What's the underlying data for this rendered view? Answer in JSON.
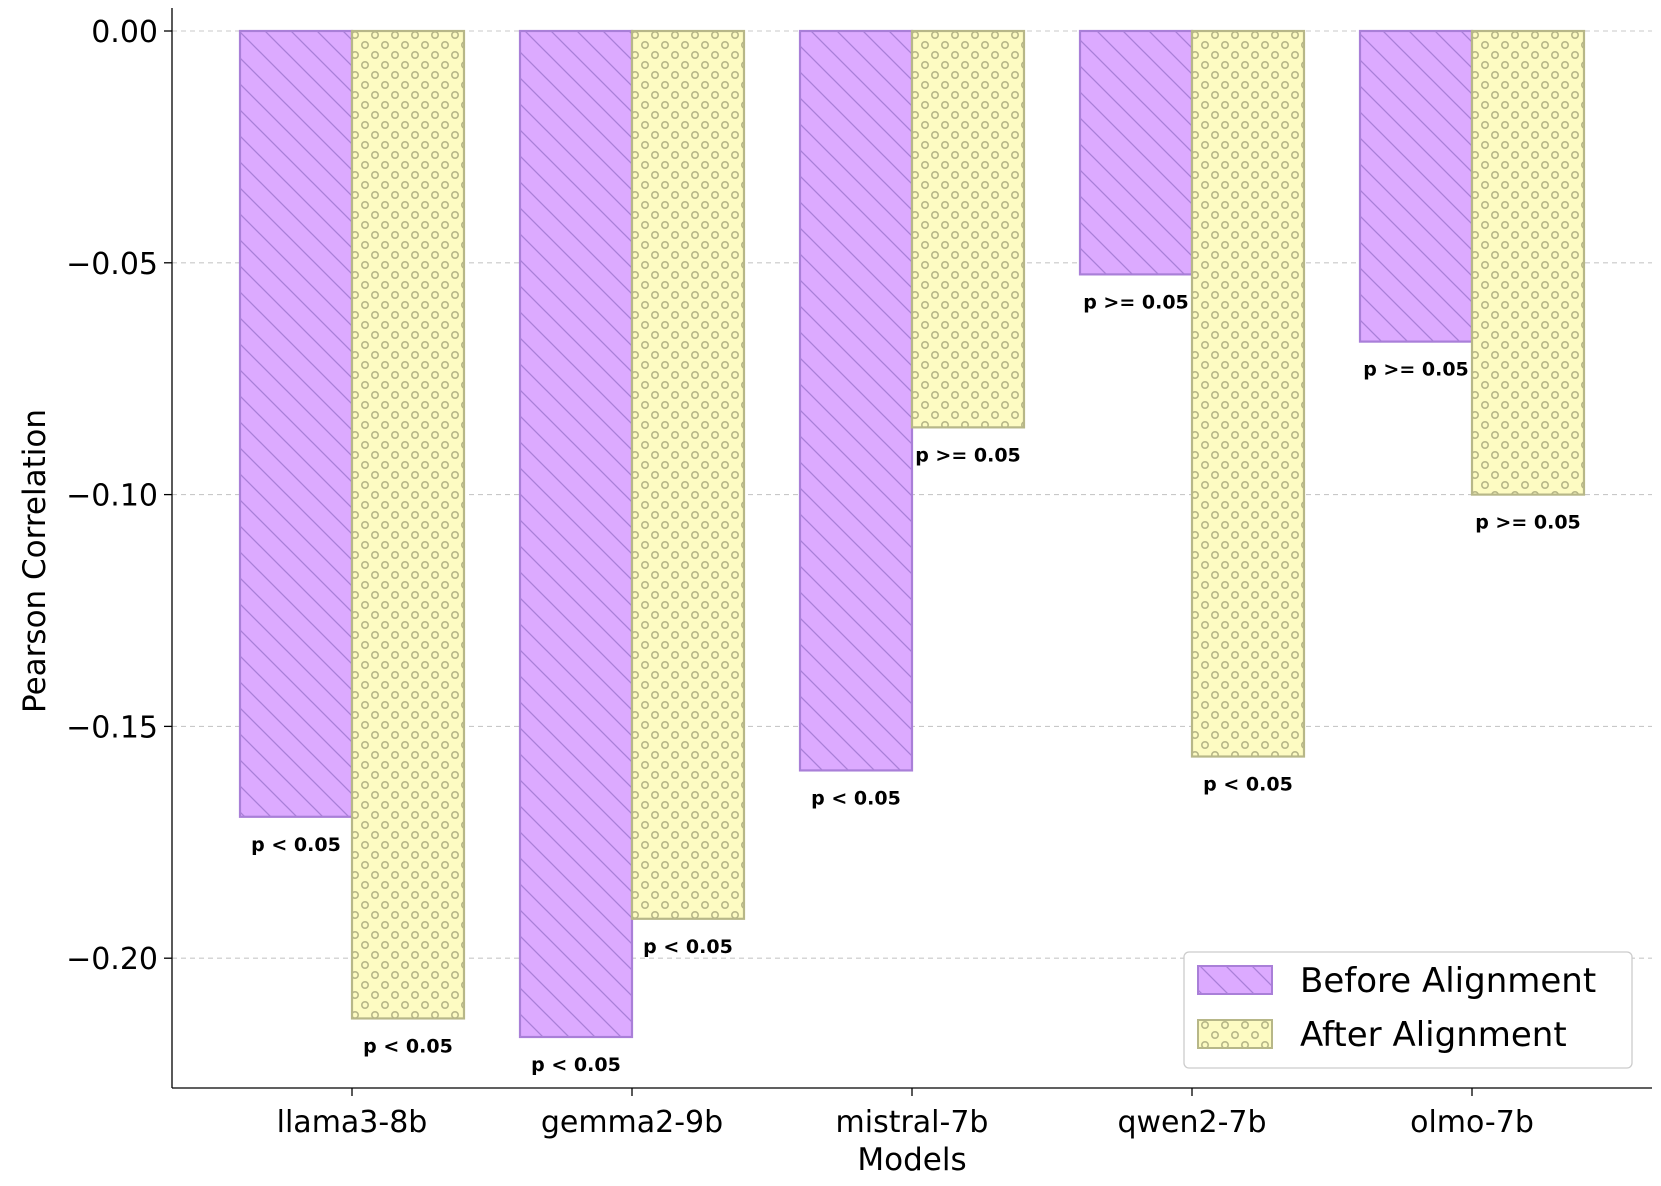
{
  "chart_data": {
    "type": "bar",
    "title": "",
    "xlabel": "Models",
    "ylabel": "Pearson Correlation",
    "ylim": [
      -0.228,
      0.0
    ],
    "yticks": [
      0.0,
      -0.05,
      -0.1,
      -0.15,
      -0.2
    ],
    "ytick_labels": [
      "0.00",
      "−0.05",
      "−0.10",
      "−0.15",
      "−0.20"
    ],
    "grid": "horizontal dashed",
    "categories": [
      "llama3-8b",
      "gemma2-9b",
      "mistral-7b",
      "qwen2-7b",
      "olmo-7b"
    ],
    "series": [
      {
        "name": "Before Alignment",
        "values": [
          -0.1695,
          -0.217,
          -0.1595,
          -0.0525,
          -0.067
        ],
        "p_labels": [
          "p < 0.05",
          "p < 0.05",
          "p < 0.05",
          "p >= 0.05",
          "p >= 0.05"
        ],
        "fill": "#dcaaff",
        "edge": "#a97fd8",
        "hatch": "diagonal"
      },
      {
        "name": "After Alignment",
        "values": [
          -0.213,
          -0.1915,
          -0.0855,
          -0.1565,
          -0.1
        ],
        "p_labels": [
          "p < 0.05",
          "p < 0.05",
          "p >= 0.05",
          "p < 0.05",
          "p >= 0.05"
        ],
        "fill": "#fdfbc2",
        "edge": "#b7b788",
        "hatch": "circles"
      }
    ],
    "legend": {
      "position": "lower-right",
      "entries": [
        "Before Alignment",
        "After Alignment"
      ]
    }
  }
}
